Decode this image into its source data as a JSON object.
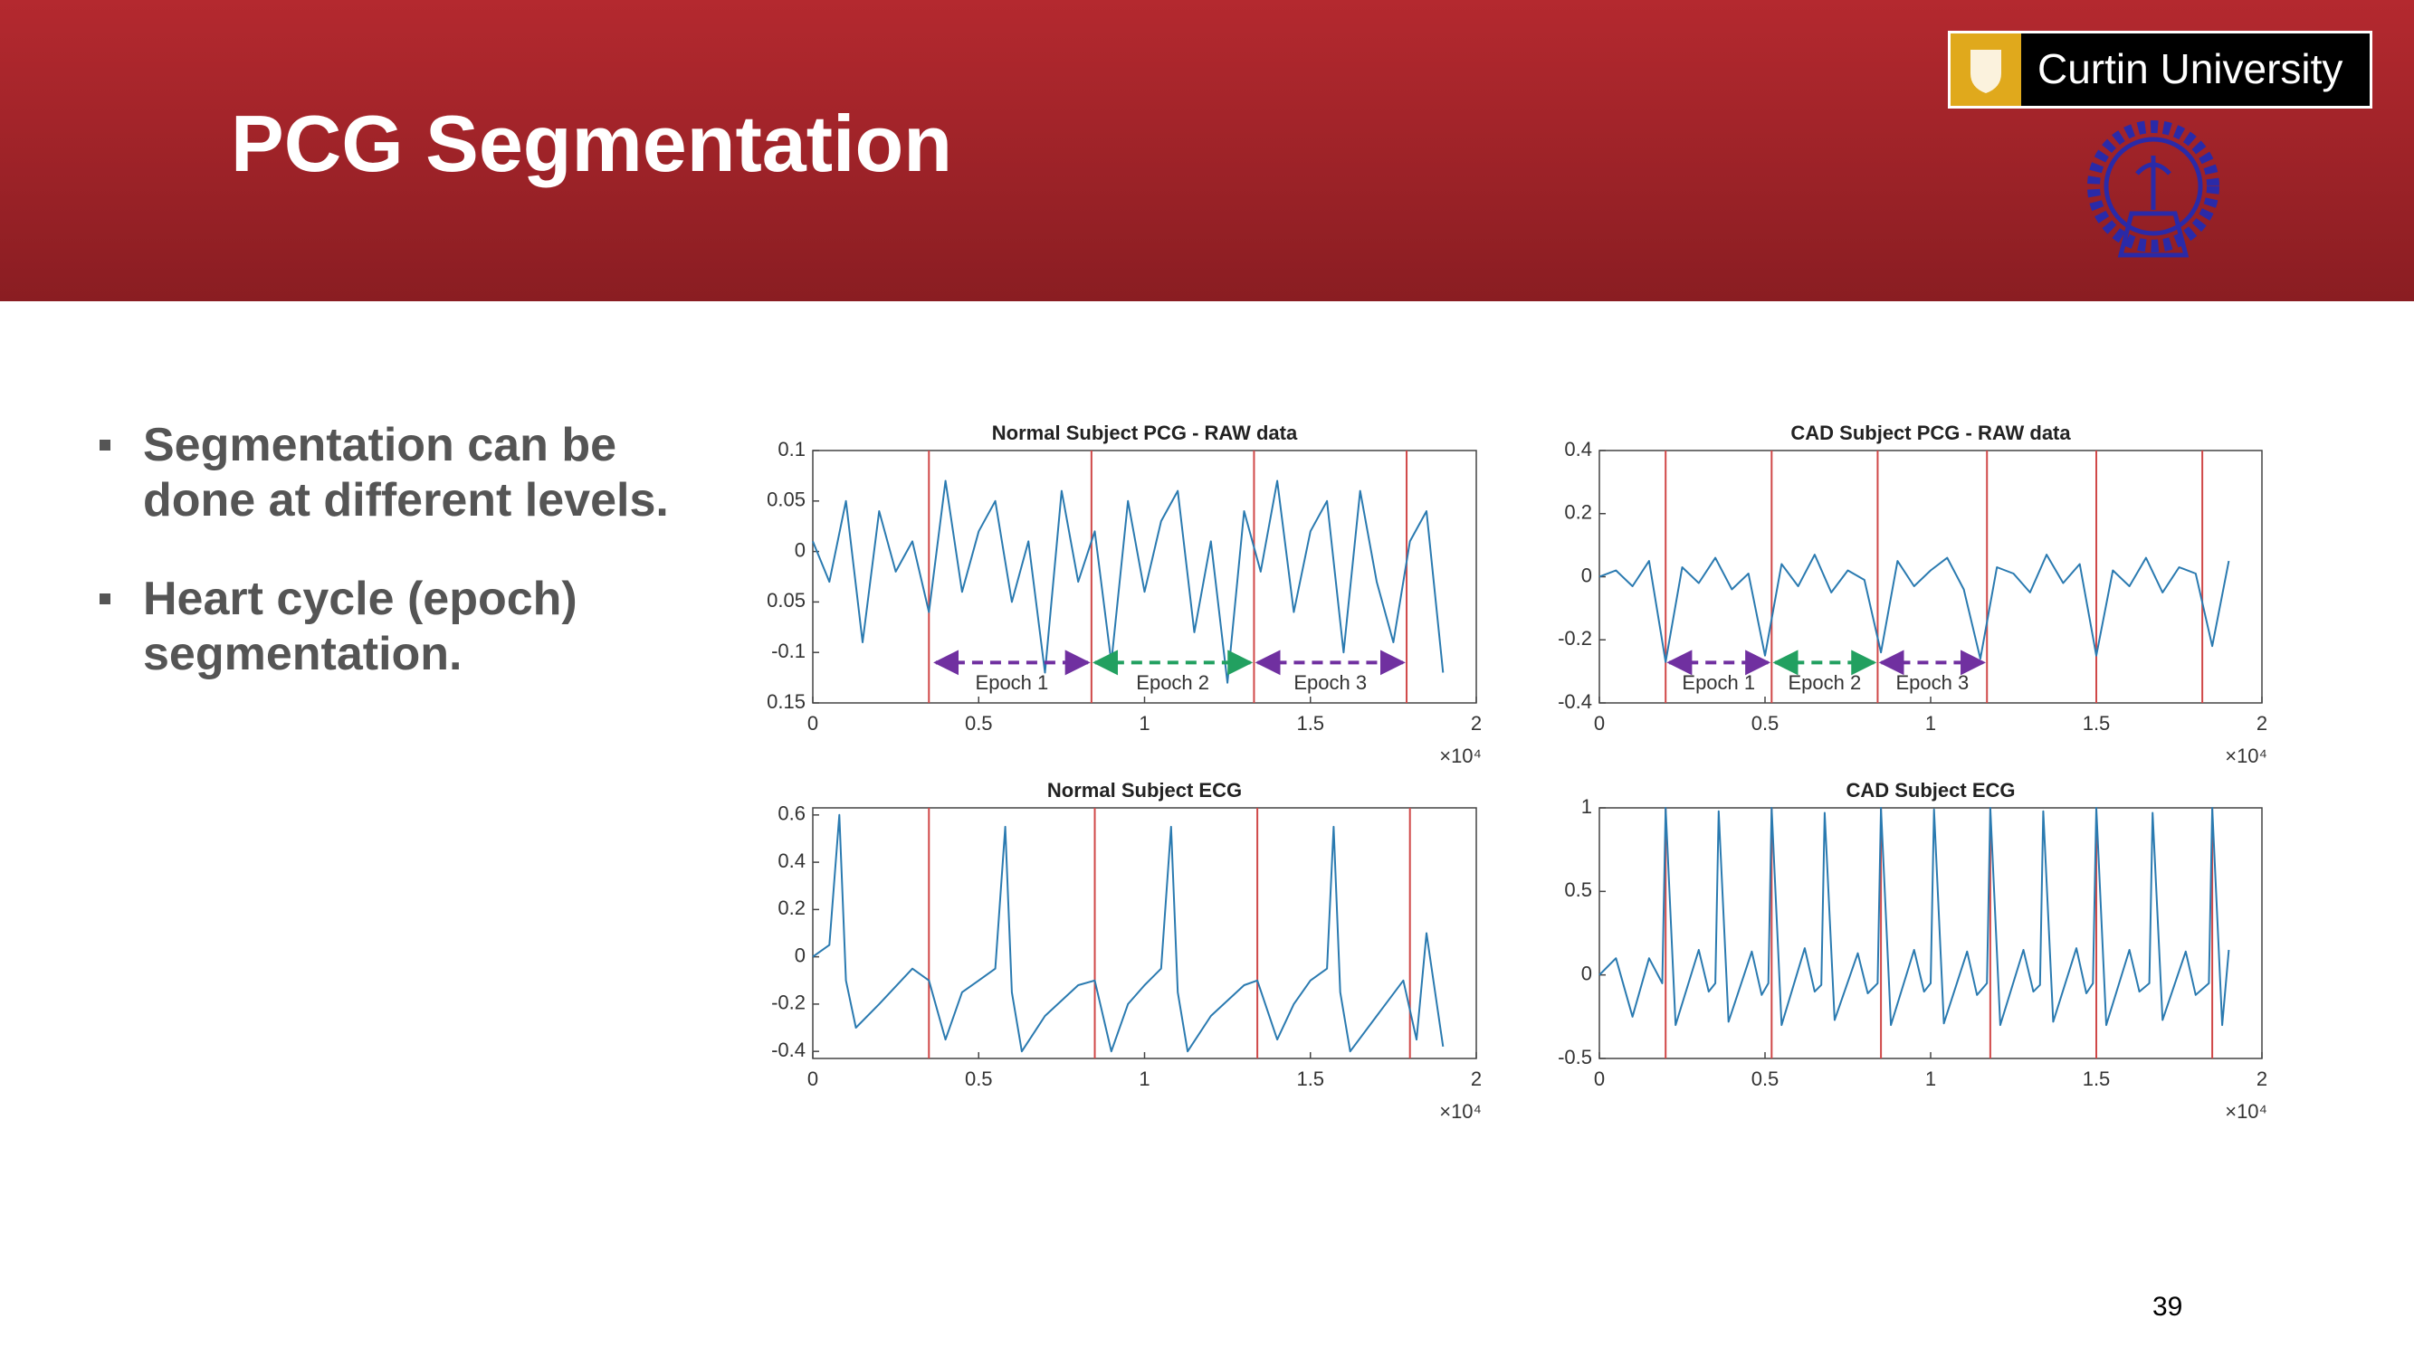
{
  "header": {
    "title": "PCG Segmentation"
  },
  "logo": {
    "text": "Curtin University"
  },
  "bullets": [
    "Segmentation can be done at different levels.",
    "Heart cycle (epoch) segmentation."
  ],
  "page_number": 39,
  "chart_data": [
    {
      "type": "line",
      "title": "Normal Subject PCG - RAW data",
      "x_multiplier": "×10⁴",
      "xlim": [
        0,
        2
      ],
      "xticks": [
        0,
        0.5,
        1,
        1.5,
        2
      ],
      "ylim": [
        -0.15,
        0.1
      ],
      "yticks": [
        {
          "value": -0.15,
          "label": "0.15"
        },
        -0.1,
        {
          "value": -0.05,
          "label": "0.05"
        },
        0,
        0.05,
        0.1
      ],
      "segment_boundaries": [
        0.35,
        0.84,
        1.33,
        1.79
      ],
      "boundary_color": "#d04848",
      "annotations": [
        {
          "label": "Epoch 1",
          "from": 0.36,
          "to": 0.84,
          "color": "#7030a0"
        },
        {
          "label": "Epoch 2",
          "from": 0.84,
          "to": 1.33,
          "color": "#22a060"
        },
        {
          "label": "Epoch 3",
          "from": 1.33,
          "to": 1.79,
          "color": "#7030a0"
        }
      ],
      "series": [
        {
          "color": "#2a7ab0",
          "x": [
            0,
            0.05,
            0.1,
            0.15,
            0.2,
            0.25,
            0.3,
            0.35,
            0.4,
            0.45,
            0.5,
            0.55,
            0.6,
            0.65,
            0.7,
            0.75,
            0.8,
            0.85,
            0.9,
            0.95,
            1.0,
            1.05,
            1.1,
            1.15,
            1.2,
            1.25,
            1.3,
            1.35,
            1.4,
            1.45,
            1.5,
            1.55,
            1.6,
            1.65,
            1.7,
            1.75,
            1.8,
            1.85,
            1.9
          ],
          "values": [
            0.01,
            -0.03,
            0.05,
            -0.09,
            0.04,
            -0.02,
            0.01,
            -0.06,
            0.07,
            -0.04,
            0.02,
            0.05,
            -0.05,
            0.01,
            -0.12,
            0.06,
            -0.03,
            0.02,
            -0.11,
            0.05,
            -0.04,
            0.03,
            0.06,
            -0.08,
            0.01,
            -0.13,
            0.04,
            -0.02,
            0.07,
            -0.06,
            0.02,
            0.05,
            -0.1,
            0.06,
            -0.03,
            -0.09,
            0.01,
            0.04,
            -0.12
          ]
        }
      ]
    },
    {
      "type": "line",
      "title": "CAD Subject PCG - RAW data",
      "x_multiplier": "×10⁴",
      "xlim": [
        0,
        2
      ],
      "xticks": [
        0,
        0.5,
        1,
        1.5,
        2
      ],
      "ylim": [
        -0.4,
        0.4
      ],
      "yticks": [
        -0.4,
        -0.2,
        0,
        0.2,
        0.4
      ],
      "segment_boundaries": [
        0.2,
        0.52,
        0.84,
        1.17,
        1.5,
        1.82
      ],
      "boundary_color": "#d04848",
      "annotations": [
        {
          "label": "Epoch 1",
          "from": 0.2,
          "to": 0.52,
          "color": "#7030a0"
        },
        {
          "label": "Epoch 2",
          "from": 0.52,
          "to": 0.84,
          "color": "#22a060"
        },
        {
          "label": "Epoch 3",
          "from": 0.84,
          "to": 1.17,
          "color": "#7030a0"
        }
      ],
      "series": [
        {
          "color": "#2a7ab0",
          "x": [
            0,
            0.05,
            0.1,
            0.15,
            0.2,
            0.25,
            0.3,
            0.35,
            0.4,
            0.45,
            0.5,
            0.55,
            0.6,
            0.65,
            0.7,
            0.75,
            0.8,
            0.85,
            0.9,
            0.95,
            1.0,
            1.05,
            1.1,
            1.15,
            1.2,
            1.25,
            1.3,
            1.35,
            1.4,
            1.45,
            1.5,
            1.55,
            1.6,
            1.65,
            1.7,
            1.75,
            1.8,
            1.85,
            1.9
          ],
          "values": [
            0.0,
            0.02,
            -0.03,
            0.05,
            -0.27,
            0.03,
            -0.02,
            0.06,
            -0.04,
            0.01,
            -0.25,
            0.04,
            -0.03,
            0.07,
            -0.05,
            0.02,
            -0.01,
            -0.24,
            0.05,
            -0.03,
            0.02,
            0.06,
            -0.04,
            -0.26,
            0.03,
            0.01,
            -0.05,
            0.07,
            -0.02,
            0.04,
            -0.25,
            0.02,
            -0.03,
            0.06,
            -0.05,
            0.03,
            0.01,
            -0.22,
            0.05
          ]
        }
      ]
    },
    {
      "type": "line",
      "title": "Normal Subject ECG",
      "x_multiplier": "×10⁴",
      "xlim": [
        0,
        2
      ],
      "xticks": [
        0,
        0.5,
        1,
        1.5,
        2
      ],
      "ylim": [
        -0.43,
        0.63
      ],
      "yticks": [
        -0.4,
        -0.2,
        0,
        0.2,
        0.4,
        0.6
      ],
      "segment_boundaries": [
        0.35,
        0.85,
        1.34,
        1.8
      ],
      "boundary_color": "#d04848",
      "series": [
        {
          "color": "#2a7ab0",
          "x": [
            0,
            0.05,
            0.08,
            0.1,
            0.13,
            0.2,
            0.3,
            0.35,
            0.4,
            0.45,
            0.5,
            0.55,
            0.58,
            0.6,
            0.63,
            0.7,
            0.8,
            0.85,
            0.9,
            0.95,
            1.0,
            1.05,
            1.08,
            1.1,
            1.13,
            1.2,
            1.3,
            1.34,
            1.4,
            1.45,
            1.5,
            1.55,
            1.57,
            1.59,
            1.62,
            1.7,
            1.78,
            1.82,
            1.85,
            1.9
          ],
          "values": [
            0,
            0.05,
            0.6,
            -0.1,
            -0.3,
            -0.2,
            -0.05,
            -0.1,
            -0.35,
            -0.15,
            -0.1,
            -0.05,
            0.55,
            -0.15,
            -0.4,
            -0.25,
            -0.12,
            -0.1,
            -0.4,
            -0.2,
            -0.12,
            -0.05,
            0.55,
            -0.15,
            -0.4,
            -0.25,
            -0.12,
            -0.1,
            -0.35,
            -0.2,
            -0.1,
            -0.05,
            0.55,
            -0.15,
            -0.4,
            -0.25,
            -0.1,
            -0.35,
            0.1,
            -0.38
          ]
        }
      ]
    },
    {
      "type": "line",
      "title": "CAD Subject ECG",
      "x_multiplier": "×10⁴",
      "xlim": [
        0,
        2
      ],
      "xticks": [
        0,
        0.5,
        1,
        1.5,
        2
      ],
      "ylim": [
        -0.5,
        1
      ],
      "yticks": [
        -0.5,
        0,
        0.5,
        1
      ],
      "segment_boundaries": [
        0.2,
        0.52,
        0.85,
        1.18,
        1.5,
        1.85
      ],
      "boundary_color": "#d04848",
      "series": [
        {
          "color": "#2a7ab0",
          "x": [
            0,
            0.05,
            0.1,
            0.15,
            0.19,
            0.2,
            0.23,
            0.3,
            0.33,
            0.35,
            0.36,
            0.39,
            0.46,
            0.49,
            0.51,
            0.52,
            0.55,
            0.62,
            0.65,
            0.67,
            0.68,
            0.71,
            0.78,
            0.81,
            0.84,
            0.85,
            0.88,
            0.95,
            0.98,
            1.0,
            1.01,
            1.04,
            1.11,
            1.14,
            1.17,
            1.18,
            1.21,
            1.28,
            1.31,
            1.33,
            1.34,
            1.37,
            1.44,
            1.47,
            1.49,
            1.5,
            1.53,
            1.6,
            1.63,
            1.66,
            1.67,
            1.7,
            1.77,
            1.8,
            1.84,
            1.85,
            1.88,
            1.9
          ],
          "values": [
            0.0,
            0.1,
            -0.25,
            0.1,
            -0.05,
            1,
            -0.3,
            0.15,
            -0.1,
            -0.05,
            0.98,
            -0.28,
            0.14,
            -0.12,
            -0.05,
            1,
            -0.3,
            0.16,
            -0.1,
            -0.06,
            0.97,
            -0.27,
            0.13,
            -0.11,
            -0.05,
            1,
            -0.3,
            0.15,
            -0.1,
            -0.05,
            0.99,
            -0.29,
            0.14,
            -0.12,
            -0.05,
            1,
            -0.3,
            0.15,
            -0.1,
            -0.06,
            0.98,
            -0.28,
            0.16,
            -0.11,
            -0.05,
            1,
            -0.3,
            0.15,
            -0.1,
            -0.05,
            0.97,
            -0.27,
            0.14,
            -0.12,
            -0.05,
            1,
            -0.3,
            0.15
          ]
        }
      ]
    }
  ]
}
